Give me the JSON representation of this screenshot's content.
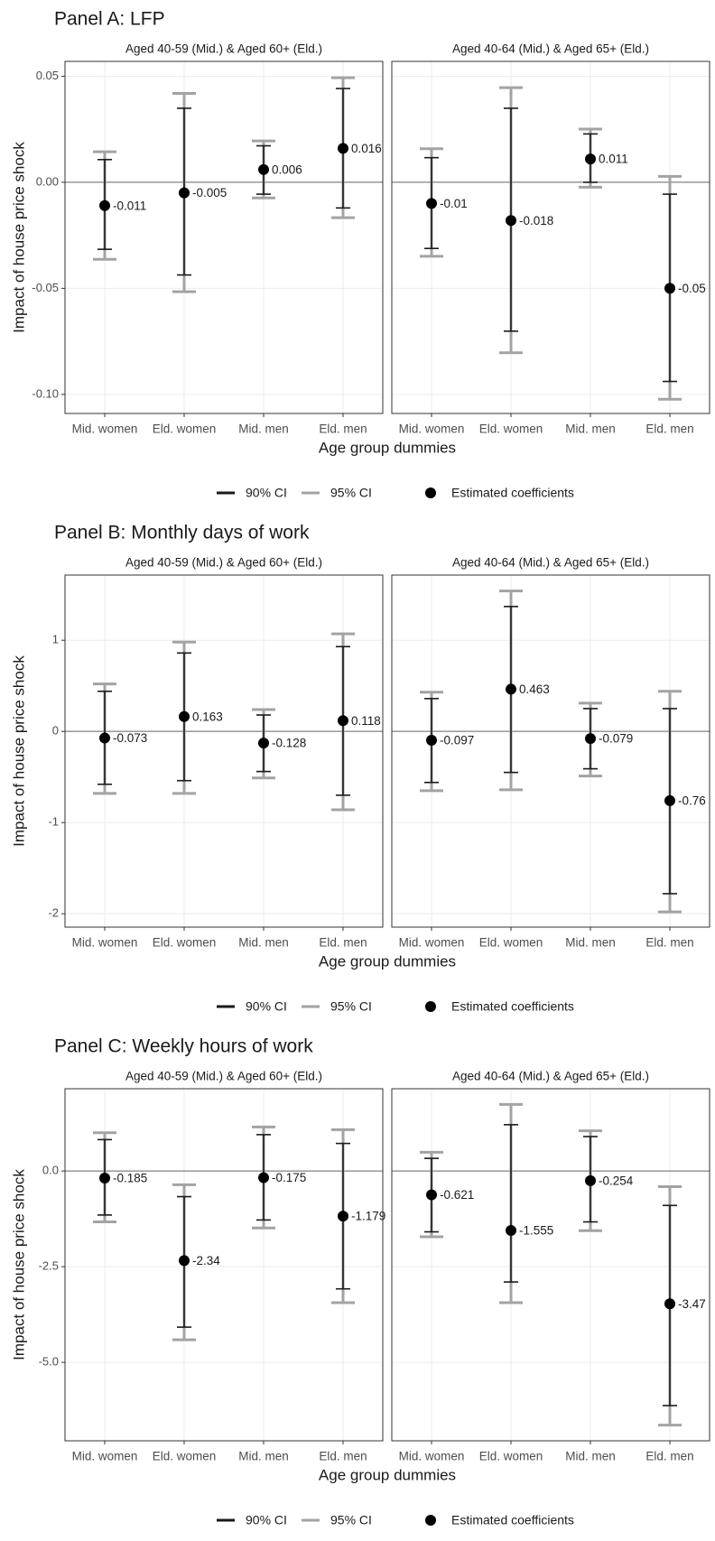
{
  "chart_data": [
    {
      "type": "errorbar",
      "title": "Panel A: LFP",
      "y_label": "Impact of house price shock",
      "x_label": "Age group dummies",
      "ylim": [
        -0.109,
        0.057
      ],
      "yticks": [
        {
          "value": -0.1,
          "label": "-0.10"
        },
        -0.05,
        {
          "value": 0,
          "label": "0.00"
        },
        0.05
      ],
      "grid": true,
      "reference_line": 0,
      "legend": [
        {
          "name": "90% CI",
          "color": "#1a1a1a"
        },
        {
          "name": "95% CI",
          "color": "#a3a3a3"
        },
        {
          "name": "Estimated coefficients",
          "color": "#000000"
        }
      ],
      "facets": [
        {
          "title": "Aged 40-59 (Mid.) & Aged 60+ (Eld.)",
          "categories": [
            "Mid. women",
            "Eld. women",
            "Mid. men",
            "Eld. men"
          ],
          "estimates": [
            -0.011,
            -0.005,
            0.006,
            0.016
          ],
          "ci90": [
            [
              -0.0316,
              0.0107
            ],
            [
              -0.0437,
              0.0349
            ],
            [
              -0.0056,
              0.0172
            ],
            [
              -0.0121,
              0.0442
            ]
          ],
          "ci95": [
            [
              -0.0363,
              0.0144
            ],
            [
              -0.0516,
              0.0419
            ],
            [
              -0.0074,
              0.0195
            ],
            [
              -0.0167,
              0.0493
            ]
          ]
        },
        {
          "title": "Aged 40-64 (Mid.) & Aged 65+ (Eld.)",
          "categories": [
            "Mid. women",
            "Eld. women",
            "Mid. men",
            "Eld. men"
          ],
          "estimates": [
            -0.01,
            -0.018,
            0.011,
            -0.05
          ],
          "ci90": [
            [
              -0.0312,
              0.0116
            ],
            [
              -0.0702,
              0.0349
            ],
            [
              0.0,
              0.0228
            ],
            [
              -0.0939,
              -0.0056
            ]
          ],
          "ci95": [
            [
              -0.0349,
              0.0158
            ],
            [
              -0.0804,
              0.0446
            ],
            [
              -0.0023,
              0.0251
            ],
            [
              -0.1023,
              0.0028
            ]
          ]
        }
      ]
    },
    {
      "type": "errorbar",
      "title": "Panel B: Monthly days of work",
      "y_label": "Impact of house price shock",
      "x_label": "Age group dummies",
      "ylim": [
        -2.147,
        1.715
      ],
      "yticks": [
        -2,
        -1,
        0,
        1
      ],
      "grid": true,
      "reference_line": 0,
      "legend": [
        {
          "name": "90% CI",
          "color": "#1a1a1a"
        },
        {
          "name": "95% CI",
          "color": "#a3a3a3"
        },
        {
          "name": "Estimated coefficients",
          "color": "#000000"
        }
      ],
      "facets": [
        {
          "title": "Aged 40-59 (Mid.) & Aged 60+ (Eld.)",
          "categories": [
            "Mid. women",
            "Eld. women",
            "Mid. men",
            "Eld. men"
          ],
          "estimates": [
            -0.073,
            0.163,
            -0.128,
            0.118
          ],
          "ci90": [
            [
              -0.58,
              0.44
            ],
            [
              -0.54,
              0.86
            ],
            [
              -0.44,
              0.18
            ],
            [
              -0.7,
              0.93
            ]
          ],
          "ci95": [
            [
              -0.68,
              0.52
            ],
            [
              -0.68,
              0.98
            ],
            [
              -0.51,
              0.24
            ],
            [
              -0.86,
              1.07
            ]
          ]
        },
        {
          "title": "Aged 40-64 (Mid.) & Aged 65+ (Eld.)",
          "categories": [
            "Mid. women",
            "Eld. women",
            "Mid. men",
            "Eld. men"
          ],
          "estimates": [
            -0.097,
            0.463,
            -0.079,
            -0.76
          ],
          "ci90": [
            [
              -0.56,
              0.36
            ],
            [
              -0.45,
              1.37
            ],
            [
              -0.41,
              0.25
            ],
            [
              -1.78,
              0.25
            ]
          ],
          "ci95": [
            [
              -0.65,
              0.43
            ],
            [
              -0.64,
              1.54
            ],
            [
              -0.49,
              0.31
            ],
            [
              -1.98,
              0.44
            ]
          ]
        }
      ]
    },
    {
      "type": "errorbar",
      "title": "Panel C: Weekly hours of work",
      "y_label": "Impact of house price shock",
      "x_label": "Age group dummies",
      "ylim": [
        -7.05,
        2.15
      ],
      "yticks": [
        {
          "value": -5,
          "label": "-5.0"
        },
        -2.5,
        {
          "value": 0,
          "label": "0.0"
        }
      ],
      "grid": true,
      "reference_line": 0,
      "legend": [
        {
          "name": "90% CI",
          "color": "#1a1a1a"
        },
        {
          "name": "95% CI",
          "color": "#a3a3a3"
        },
        {
          "name": "Estimated coefficients",
          "color": "#000000"
        }
      ],
      "facets": [
        {
          "title": "Aged 40-59 (Mid.) & Aged 60+ (Eld.)",
          "categories": [
            "Mid. women",
            "Eld. women",
            "Mid. men",
            "Eld. men"
          ],
          "estimates": [
            -0.185,
            -2.34,
            -0.175,
            -1.179
          ],
          "ci90": [
            [
              -1.15,
              0.82
            ],
            [
              -4.08,
              -0.67
            ],
            [
              -1.28,
              0.95
            ],
            [
              -3.08,
              0.72
            ]
          ],
          "ci95": [
            [
              -1.33,
              1.0
            ],
            [
              -4.41,
              -0.36
            ],
            [
              -1.49,
              1.15
            ],
            [
              -3.44,
              1.08
            ]
          ]
        },
        {
          "title": "Aged 40-64 (Mid.) & Aged 65+ (Eld.)",
          "categories": [
            "Mid. women",
            "Eld. women",
            "Mid. men",
            "Eld. men"
          ],
          "estimates": [
            -0.621,
            -1.555,
            -0.254,
            -3.47
          ],
          "ci90": [
            [
              -1.59,
              0.33
            ],
            [
              -2.9,
              1.21
            ],
            [
              -1.33,
              0.9
            ],
            [
              -6.13,
              -0.9
            ]
          ],
          "ci95": [
            [
              -1.72,
              0.49
            ],
            [
              -3.44,
              1.74
            ],
            [
              -1.56,
              1.05
            ],
            [
              -6.64,
              -0.41
            ]
          ]
        }
      ]
    }
  ]
}
